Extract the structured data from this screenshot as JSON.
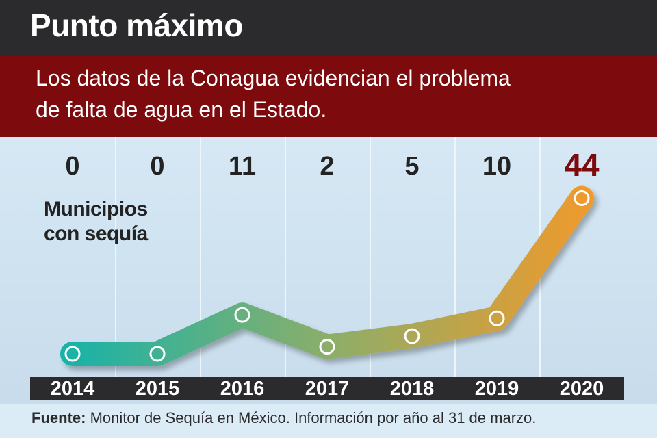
{
  "header": {
    "title": "Punto máximo",
    "subtitle_line1": "Los datos de la Conagua evidencian el problema",
    "subtitle_line2": "de falta de agua en el Estado."
  },
  "source": {
    "label": "Fuente:",
    "text": " Monitor de Sequía en México. Información por año al 31 de marzo."
  },
  "chart_data": {
    "type": "line",
    "title": "Punto máximo",
    "ylabel_line1": "Municipios",
    "ylabel_line2": "con sequía",
    "xlabel": "",
    "categories": [
      "2014",
      "2015",
      "2016",
      "2017",
      "2018",
      "2019",
      "2020"
    ],
    "values": [
      0,
      0,
      11,
      2,
      5,
      10,
      44
    ],
    "value_labels": [
      "0",
      "0",
      "11",
      "2",
      "5",
      "10",
      "44"
    ],
    "highlight_index": 6,
    "grid": false,
    "colors": {
      "line_start": "#19b3a8",
      "line_mid": "#8cae6a",
      "line_end": "#ef9a2c",
      "highlight_text": "#7d0a0c",
      "header_dark": "#2b2b2d",
      "header_red": "#7d0a0c"
    }
  }
}
